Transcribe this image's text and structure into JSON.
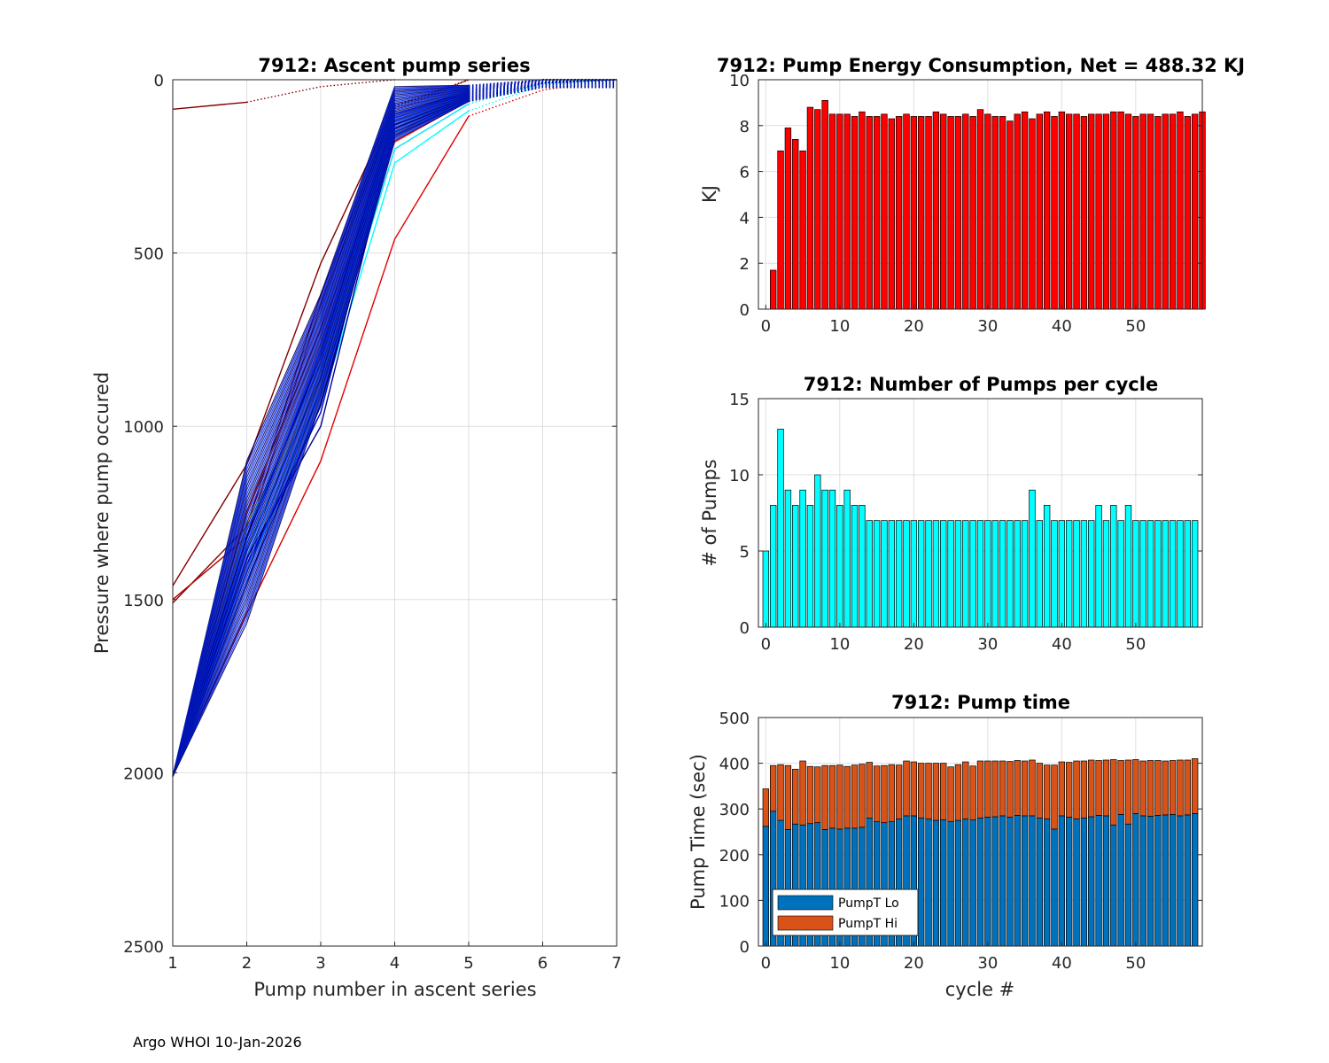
{
  "footer": "Argo WHOI 10-Jan-2026",
  "colors": {
    "red": "#ff0000",
    "cyan": "#00ffff",
    "lo": "#0072bd",
    "hi": "#d95319",
    "grid": "#dfdfdf"
  },
  "chart_data": [
    {
      "id": "ascent",
      "type": "line",
      "title": "7912: Ascent pump series",
      "xlabel": "Pump number in ascent series",
      "ylabel": "Pressure where pump occured",
      "xlim": [
        1,
        7
      ],
      "ylim": [
        0,
        2500
      ],
      "y_reversed": true,
      "xticks": [
        1,
        2,
        3,
        4,
        5,
        6,
        7
      ],
      "yticks": [
        0,
        500,
        1000,
        1500,
        2000,
        2500
      ],
      "series": [
        {
          "color": "#800000",
          "dotted_from": 2,
          "points": [
            [
              1,
              85
            ],
            [
              2,
              65
            ],
            [
              3,
              20
            ],
            [
              4,
              0
            ]
          ]
        },
        {
          "color": "#800000",
          "dotted_from": 4,
          "points": [
            [
              1,
              1460
            ],
            [
              2,
              1110
            ],
            [
              3,
              530
            ],
            [
              4,
              75
            ],
            [
              5,
              0
            ]
          ]
        },
        {
          "color": "#800000",
          "dotted_from": 4,
          "points": [
            [
              1,
              1510
            ],
            [
              2,
              1290
            ],
            [
              3,
              620
            ],
            [
              4,
              80
            ],
            [
              5,
              0
            ]
          ]
        },
        {
          "color": "#b00000",
          "dotted_from": 4,
          "points": [
            [
              1,
              1500
            ],
            [
              2,
              1320
            ],
            [
              3,
              650
            ],
            [
              4,
              90
            ],
            [
              5,
              0
            ]
          ]
        },
        {
          "color": "#e00000",
          "dotted_from": 5,
          "points": [
            [
              1,
              2010
            ],
            [
              2,
              1540
            ],
            [
              3,
              1100
            ],
            [
              4,
              460
            ],
            [
              5,
              105
            ],
            [
              6,
              30
            ],
            [
              7,
              0
            ]
          ]
        },
        {
          "color": "#ff2000",
          "dotted_from": 5,
          "points": [
            [
              1,
              2010
            ],
            [
              2,
              1250
            ],
            [
              3,
              720
            ],
            [
              4,
              180
            ],
            [
              5,
              60
            ],
            [
              6,
              10
            ],
            [
              7,
              0
            ]
          ]
        },
        {
          "color": "#ff9000",
          "dotted_from": 5,
          "points": [
            [
              1,
              2010
            ],
            [
              2,
              1230
            ],
            [
              3,
              760
            ],
            [
              4,
              160
            ],
            [
              5,
              40
            ],
            [
              6,
              5
            ],
            [
              7,
              0
            ]
          ]
        },
        {
          "color": "#ffff00",
          "dotted_from": 5,
          "points": [
            [
              1,
              2010
            ],
            [
              2,
              1280
            ],
            [
              3,
              880
            ],
            [
              4,
              140
            ],
            [
              5,
              50
            ],
            [
              6,
              10
            ],
            [
              7,
              0
            ]
          ]
        },
        {
          "color": "#80ff80",
          "dotted_from": 5,
          "points": [
            [
              1,
              2010
            ],
            [
              2,
              1350
            ],
            [
              3,
              850
            ],
            [
              4,
              130
            ],
            [
              5,
              60
            ],
            [
              6,
              10
            ],
            [
              7,
              0
            ]
          ]
        },
        {
          "color": "#00ffff",
          "dotted_from": 5,
          "points": [
            [
              1,
              2010
            ],
            [
              2,
              1420
            ],
            [
              3,
              940
            ],
            [
              4,
              240
            ],
            [
              5,
              90
            ],
            [
              6,
              15
            ],
            [
              7,
              0
            ]
          ]
        },
        {
          "color": "#00e0ff",
          "dotted_from": 5,
          "points": [
            [
              1,
              2010
            ],
            [
              2,
              1380
            ],
            [
              3,
              900
            ],
            [
              4,
              200
            ],
            [
              5,
              70
            ],
            [
              6,
              10
            ],
            [
              7,
              0
            ]
          ]
        },
        {
          "color": "#00a0ff",
          "dotted_from": 5,
          "points": [
            [
              1,
              2010
            ],
            [
              2,
              1300
            ],
            [
              3,
              820
            ],
            [
              4,
              120
            ],
            [
              5,
              50
            ],
            [
              6,
              5
            ],
            [
              7,
              0
            ]
          ]
        },
        {
          "color": "#0070ff",
          "dotted_from": 5,
          "points": [
            [
              1,
              2010
            ],
            [
              2,
              1420
            ],
            [
              3,
              900
            ],
            [
              4,
              150
            ],
            [
              5,
              55
            ],
            [
              6,
              8
            ],
            [
              7,
              0
            ]
          ]
        },
        {
          "color": "#0040ff",
          "dotted_from": 5,
          "points": [
            [
              1,
              2010
            ],
            [
              2,
              1360
            ],
            [
              3,
              860
            ],
            [
              4,
              110
            ],
            [
              5,
              45
            ],
            [
              6,
              5
            ],
            [
              7,
              0
            ]
          ]
        },
        {
          "color": "#0000ff",
          "dotted_from": 5,
          "points": [
            [
              1,
              2010
            ],
            [
              2,
              1340
            ],
            [
              3,
              780
            ],
            [
              4,
              100
            ],
            [
              5,
              40
            ],
            [
              6,
              0
            ],
            [
              7,
              0
            ]
          ]
        },
        {
          "color": "#0000cc",
          "dotted_from": 5,
          "points": [
            [
              1,
              2010
            ],
            [
              2,
              1400
            ],
            [
              3,
              960
            ],
            [
              4,
              130
            ],
            [
              5,
              50
            ],
            [
              6,
              5
            ],
            [
              7,
              0
            ]
          ]
        },
        {
          "color": "#000099",
          "dotted_from": 5,
          "points": [
            [
              1,
              2010
            ],
            [
              2,
              1380
            ],
            [
              3,
              1000
            ],
            [
              4,
              140
            ],
            [
              5,
              55
            ],
            [
              6,
              8
            ],
            [
              7,
              0
            ]
          ]
        },
        {
          "color": "#000080",
          "dotted_from": 5,
          "points": [
            [
              1,
              2010
            ],
            [
              2,
              1450
            ],
            [
              3,
              940
            ],
            [
              4,
              160
            ],
            [
              5,
              60
            ],
            [
              6,
              10
            ],
            [
              7,
              0
            ]
          ]
        },
        {
          "color": "#00007a",
          "dotted_from": 5,
          "points": [
            [
              1,
              2010
            ],
            [
              2,
              1320
            ],
            [
              3,
              800
            ],
            [
              4,
              100
            ],
            [
              5,
              35
            ],
            [
              6,
              0
            ],
            [
              7,
              0
            ]
          ]
        }
      ]
    },
    {
      "id": "energy",
      "type": "bar",
      "title": "7912: Pump Energy Consumption,  Net = 488.32 KJ",
      "xlabel": "",
      "ylabel": "KJ",
      "xlim": [
        -1,
        59
      ],
      "ylim": [
        0,
        10
      ],
      "xticks": [
        0,
        10,
        20,
        30,
        40,
        50
      ],
      "yticks": [
        0,
        2,
        4,
        6,
        8,
        10
      ],
      "color": "#ff0000",
      "x_start": 1,
      "values": [
        1.7,
        6.9,
        7.9,
        7.4,
        6.9,
        8.8,
        8.7,
        9.1,
        8.5,
        8.5,
        8.5,
        8.4,
        8.6,
        8.4,
        8.4,
        8.5,
        8.3,
        8.4,
        8.5,
        8.4,
        8.4,
        8.4,
        8.6,
        8.5,
        8.4,
        8.4,
        8.5,
        8.4,
        8.7,
        8.5,
        8.4,
        8.4,
        8.2,
        8.5,
        8.6,
        8.3,
        8.5,
        8.6,
        8.4,
        8.6,
        8.5,
        8.5,
        8.4,
        8.5,
        8.5,
        8.5,
        8.6,
        8.6,
        8.5,
        8.4,
        8.5,
        8.5,
        8.4,
        8.5,
        8.5,
        8.6,
        8.4,
        8.5,
        8.6
      ]
    },
    {
      "id": "pumps",
      "type": "bar",
      "title": "7912: Number of Pumps per cycle",
      "xlabel": "",
      "ylabel": "# of Pumps",
      "xlim": [
        -1,
        59
      ],
      "ylim": [
        0,
        15
      ],
      "xticks": [
        0,
        10,
        20,
        30,
        40,
        50
      ],
      "yticks": [
        0,
        5,
        10,
        15
      ],
      "color": "#00ffff",
      "x_start": 0,
      "values": [
        5,
        8,
        13,
        9,
        8,
        9,
        8,
        10,
        9,
        9,
        8,
        9,
        8,
        8,
        7,
        7,
        7,
        7,
        7,
        7,
        7,
        7,
        7,
        7,
        7,
        7,
        7,
        7,
        7,
        7,
        7,
        7,
        7,
        7,
        7,
        7,
        9,
        7,
        8,
        7,
        7,
        7,
        7,
        7,
        7,
        8,
        7,
        8,
        7,
        8,
        7,
        7,
        7,
        7,
        7,
        7,
        7,
        7,
        7
      ]
    },
    {
      "id": "pumptime",
      "type": "bar",
      "stacked": true,
      "title": "7912: Pump time",
      "xlabel": "cycle #",
      "ylabel": "Pump Time (sec)",
      "xlim": [
        -1,
        59
      ],
      "ylim": [
        0,
        500
      ],
      "xticks": [
        0,
        10,
        20,
        30,
        40,
        50
      ],
      "yticks": [
        0,
        100,
        200,
        300,
        400,
        500
      ],
      "legend_position": "bottom-left",
      "x_start": 0,
      "series": [
        {
          "name": "PumpT Lo",
          "color": "#0072bd",
          "values": [
            262,
            295,
            275,
            255,
            267,
            265,
            268,
            270,
            255,
            258,
            256,
            258,
            258,
            260,
            280,
            272,
            270,
            272,
            278,
            285,
            285,
            280,
            278,
            275,
            276,
            272,
            275,
            278,
            276,
            280,
            282,
            283,
            285,
            282,
            286,
            285,
            285,
            280,
            278,
            256,
            285,
            282,
            278,
            280,
            283,
            286,
            285,
            265,
            288,
            267,
            290,
            285,
            284,
            286,
            287,
            288,
            285,
            287,
            290
          ]
        },
        {
          "name": "PumpT Hi",
          "color": "#d95319",
          "values": [
            82,
            100,
            122,
            140,
            120,
            140,
            125,
            122,
            140,
            137,
            140,
            135,
            138,
            138,
            122,
            122,
            125,
            125,
            118,
            120,
            118,
            120,
            122,
            125,
            124,
            120,
            122,
            125,
            118,
            125,
            123,
            122,
            120,
            122,
            120,
            120,
            122,
            120,
            118,
            140,
            118,
            120,
            127,
            125,
            124,
            120,
            122,
            143,
            118,
            140,
            118,
            120,
            122,
            120,
            118,
            118,
            122,
            120,
            120
          ]
        }
      ]
    }
  ]
}
